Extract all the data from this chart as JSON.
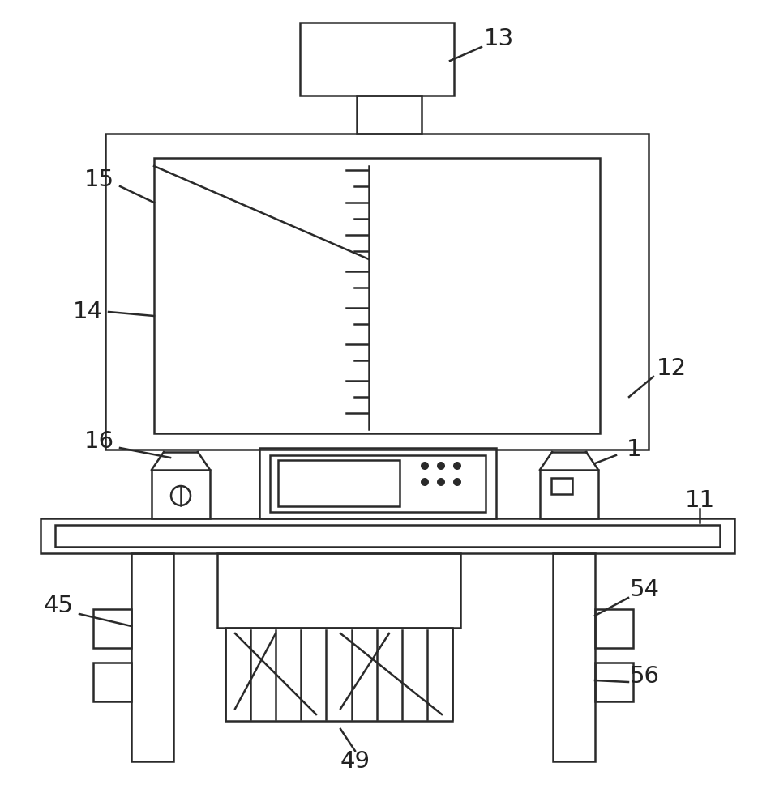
{
  "bg_color": "#ffffff",
  "line_color": "#2a2a2a",
  "lw": 1.8,
  "fig_w": 9.56,
  "fig_h": 10.0
}
